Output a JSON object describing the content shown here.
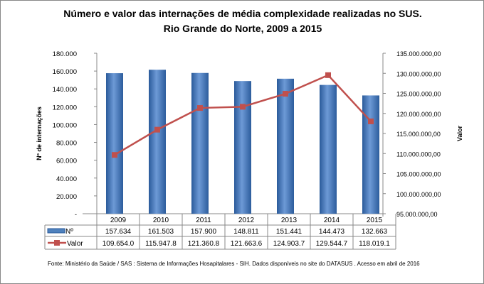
{
  "chart_data": {
    "type": "bar+line",
    "title": "Número e valor das internações de média complexidade realizadas no SUS.",
    "subtitle": "Rio Grande do Norte, 2009 a 2015",
    "categories": [
      "2009",
      "2010",
      "2011",
      "2012",
      "2013",
      "2014",
      "2015"
    ],
    "series": [
      {
        "name": "Nº",
        "type": "bar",
        "axis": "left",
        "color": "#4f81bd",
        "values": [
          157634,
          161503,
          157900,
          148811,
          151441,
          144473,
          132663
        ],
        "labels": [
          "157.634",
          "161.503",
          "157.900",
          "148.811",
          "151.441",
          "144.473",
          "132.663"
        ]
      },
      {
        "name": "Valor",
        "type": "line",
        "axis": "right",
        "color": "#c0504d",
        "values": [
          109654000,
          115947800,
          121360800,
          121663600,
          124903700,
          129544700,
          118019100
        ],
        "labels": [
          "109.654.0",
          "115.947.8",
          "121.360.8",
          "121.663.6",
          "124.903.7",
          "129.544.7",
          "118.019.1"
        ]
      }
    ],
    "ylabel": "Nº de internações",
    "ylim": [
      0,
      180000
    ],
    "yticks": [
      "-",
      "20.000",
      "40.000",
      "60.000",
      "80.000",
      "100.000",
      "120.000",
      "140.000",
      "160.000",
      "180.000"
    ],
    "y2label": "Valor",
    "y2lim": [
      95000000,
      135000000
    ],
    "y2ticks": [
      "95.000.000,00",
      "100.000.000,00",
      "105.000.000,00",
      "110.000.000,00",
      "115.000.000,00",
      "120.000.000,00",
      "125.000.000,00",
      "130.000.000,00",
      "135.000.000,00"
    ],
    "grid": false,
    "legend": "data-table"
  },
  "source": "Fonte:  Ministério da Saúde / SAS : Sistema de Informações Hosapitalares - SIH. Dados disponíveis no site do DATASUS . Acesso em abril de 2016"
}
